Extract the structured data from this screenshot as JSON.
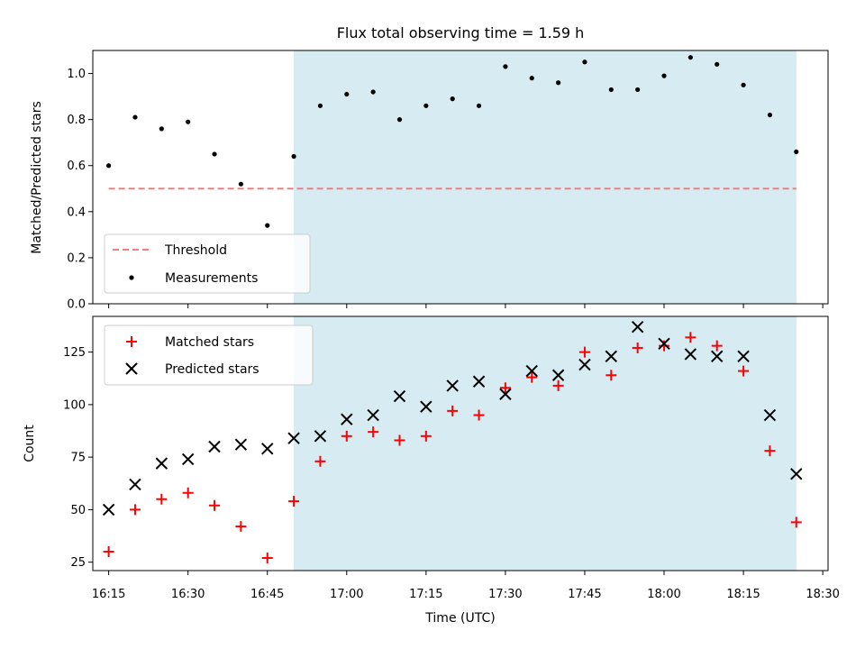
{
  "chart_data": [
    {
      "type": "scatter",
      "title": "Flux total observing time = 1.59 h",
      "xlabel": "",
      "ylabel": "Matched/Predicted stars",
      "ylim": [
        0,
        1.1
      ],
      "xlim": [
        "16:12",
        "18:31"
      ],
      "yticks": [
        "0.0",
        "0.2",
        "0.4",
        "0.6",
        "0.8",
        "1.0"
      ],
      "shaded_region": {
        "from": "16:50",
        "to": "18:25",
        "color": "#add8e6"
      },
      "grid": false,
      "legend": {
        "placement": "lower-left",
        "entries": [
          "Threshold",
          "Measurements"
        ]
      },
      "series": [
        {
          "name": "Threshold",
          "style": "dashed-line",
          "color": "#f08080",
          "x": [
            "16:15",
            "18:25"
          ],
          "y": [
            0.5,
            0.5
          ]
        },
        {
          "name": "Measurements",
          "style": "dot",
          "color": "#000000",
          "x": [
            "16:15",
            "16:20",
            "16:25",
            "16:30",
            "16:35",
            "16:40",
            "16:45",
            "16:50",
            "16:55",
            "17:00",
            "17:05",
            "17:10",
            "17:15",
            "17:20",
            "17:25",
            "17:30",
            "17:35",
            "17:40",
            "17:45",
            "17:50",
            "17:55",
            "18:00",
            "18:05",
            "18:10",
            "18:15",
            "18:20",
            "18:25"
          ],
          "y": [
            0.6,
            0.81,
            0.76,
            0.79,
            0.65,
            0.52,
            0.34,
            0.64,
            0.86,
            0.91,
            0.92,
            0.8,
            0.86,
            0.89,
            0.86,
            1.03,
            0.98,
            0.96,
            1.05,
            0.93,
            0.93,
            0.99,
            1.07,
            1.04,
            0.95,
            0.82,
            0.66
          ]
        }
      ]
    },
    {
      "type": "scatter",
      "title": "",
      "xlabel": "Time (UTC)",
      "ylabel": "Count",
      "ylim": [
        21,
        142
      ],
      "xlim": [
        "16:12",
        "18:31"
      ],
      "xticks": [
        "16:15",
        "16:30",
        "16:45",
        "17:00",
        "17:15",
        "17:30",
        "17:45",
        "18:00",
        "18:15",
        "18:30"
      ],
      "yticks": [
        "25",
        "50",
        "75",
        "100",
        "125"
      ],
      "shaded_region": {
        "from": "16:50",
        "to": "18:25",
        "color": "#add8e6"
      },
      "grid": false,
      "legend": {
        "placement": "upper-left",
        "entries": [
          "Matched stars",
          "Predicted stars"
        ]
      },
      "series": [
        {
          "name": "Matched stars",
          "style": "plus",
          "color": "#ff0000",
          "x": [
            "16:15",
            "16:20",
            "16:25",
            "16:30",
            "16:35",
            "16:40",
            "16:45",
            "16:50",
            "16:55",
            "17:00",
            "17:05",
            "17:10",
            "17:15",
            "17:20",
            "17:25",
            "17:30",
            "17:35",
            "17:40",
            "17:45",
            "17:50",
            "17:55",
            "18:00",
            "18:05",
            "18:10",
            "18:15",
            "18:20",
            "18:25"
          ],
          "y": [
            30,
            50,
            55,
            58,
            52,
            42,
            27,
            54,
            73,
            85,
            87,
            83,
            85,
            97,
            95,
            108,
            113,
            109,
            125,
            114,
            127,
            128,
            132,
            128,
            116,
            78,
            44
          ]
        },
        {
          "name": "Predicted stars",
          "style": "x",
          "color": "#000000",
          "x": [
            "16:15",
            "16:20",
            "16:25",
            "16:30",
            "16:35",
            "16:40",
            "16:45",
            "16:50",
            "16:55",
            "17:00",
            "17:05",
            "17:10",
            "17:15",
            "17:20",
            "17:25",
            "17:30",
            "17:35",
            "17:40",
            "17:45",
            "17:50",
            "17:55",
            "18:00",
            "18:05",
            "18:10",
            "18:15",
            "18:20",
            "18:25"
          ],
          "y": [
            50,
            62,
            72,
            74,
            80,
            81,
            79,
            84,
            85,
            93,
            95,
            104,
            99,
            109,
            111,
            105,
            116,
            114,
            119,
            123,
            137,
            129,
            124,
            123,
            123,
            95,
            67
          ]
        }
      ]
    }
  ]
}
